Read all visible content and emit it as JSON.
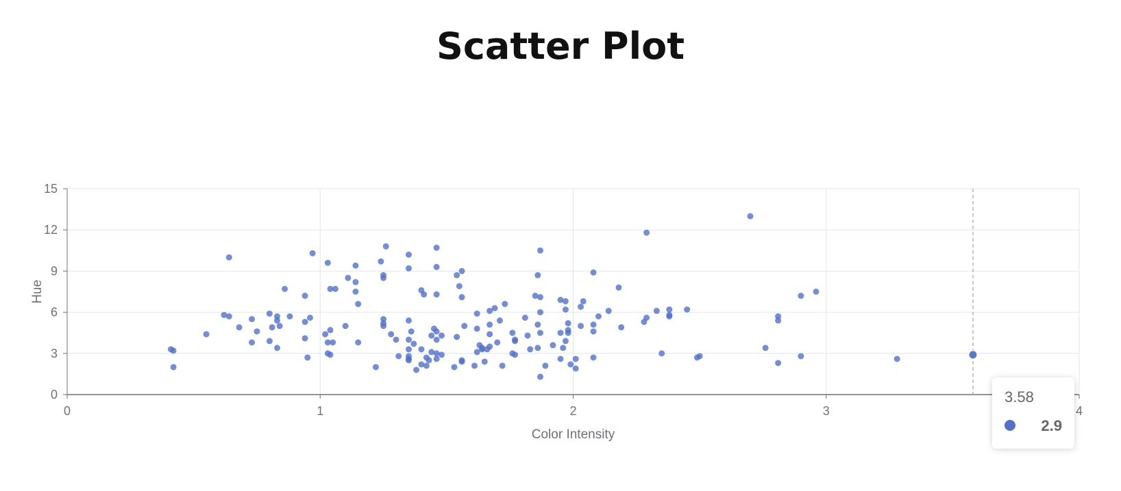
{
  "title": "Scatter Plot",
  "chart_data": {
    "type": "scatter",
    "xlabel": "Color Intensity",
    "ylabel": "Hue",
    "xlim": [
      0,
      4
    ],
    "ylim": [
      0,
      15
    ],
    "x_ticks": [
      "0",
      "1",
      "2",
      "3",
      "4"
    ],
    "y_ticks": [
      "0",
      "3",
      "6",
      "9",
      "12",
      "15"
    ],
    "grid": true,
    "color": "#5470c6",
    "series": [
      {
        "points": [
          [
            0.41,
            3.3
          ],
          [
            0.42,
            3.2
          ],
          [
            0.42,
            2.0
          ],
          [
            0.55,
            4.4
          ],
          [
            0.62,
            5.8
          ],
          [
            0.64,
            5.7
          ],
          [
            0.64,
            10.0
          ],
          [
            0.68,
            4.9
          ],
          [
            0.73,
            5.5
          ],
          [
            0.73,
            3.8
          ],
          [
            0.75,
            4.6
          ],
          [
            0.8,
            5.9
          ],
          [
            0.8,
            3.9
          ],
          [
            0.81,
            4.9
          ],
          [
            0.83,
            5.7
          ],
          [
            0.83,
            5.4
          ],
          [
            0.83,
            3.4
          ],
          [
            0.84,
            5.0
          ],
          [
            0.86,
            7.7
          ],
          [
            0.88,
            5.7
          ],
          [
            0.94,
            7.2
          ],
          [
            0.94,
            5.3
          ],
          [
            0.94,
            4.1
          ],
          [
            0.95,
            2.7
          ],
          [
            0.96,
            5.6
          ],
          [
            0.97,
            10.3
          ],
          [
            1.02,
            4.4
          ],
          [
            1.03,
            9.6
          ],
          [
            1.03,
            3.8
          ],
          [
            1.03,
            3.0
          ],
          [
            1.04,
            7.7
          ],
          [
            1.04,
            4.7
          ],
          [
            1.04,
            2.9
          ],
          [
            1.05,
            3.8
          ],
          [
            1.06,
            7.7
          ],
          [
            1.1,
            5.0
          ],
          [
            1.11,
            8.5
          ],
          [
            1.14,
            9.4
          ],
          [
            1.14,
            8.2
          ],
          [
            1.14,
            7.5
          ],
          [
            1.15,
            6.6
          ],
          [
            1.15,
            3.8
          ],
          [
            1.22,
            2.0
          ],
          [
            1.24,
            9.7
          ],
          [
            1.25,
            8.7
          ],
          [
            1.25,
            8.5
          ],
          [
            1.25,
            5.5
          ],
          [
            1.25,
            5.2
          ],
          [
            1.25,
            5.0
          ],
          [
            1.26,
            10.8
          ],
          [
            1.28,
            4.4
          ],
          [
            1.3,
            4.0
          ],
          [
            1.31,
            2.8
          ],
          [
            1.35,
            10.2
          ],
          [
            1.35,
            9.2
          ],
          [
            1.35,
            5.4
          ],
          [
            1.35,
            4.0
          ],
          [
            1.35,
            3.3
          ],
          [
            1.35,
            2.8
          ],
          [
            1.35,
            2.6
          ],
          [
            1.35,
            2.5
          ],
          [
            1.36,
            4.6
          ],
          [
            1.37,
            3.7
          ],
          [
            1.38,
            1.8
          ],
          [
            1.4,
            7.6
          ],
          [
            1.4,
            3.3
          ],
          [
            1.4,
            2.2
          ],
          [
            1.41,
            7.3
          ],
          [
            1.42,
            2.7
          ],
          [
            1.42,
            2.1
          ],
          [
            1.43,
            2.5
          ],
          [
            1.44,
            4.3
          ],
          [
            1.44,
            3.1
          ],
          [
            1.45,
            4.8
          ],
          [
            1.46,
            10.7
          ],
          [
            1.46,
            9.3
          ],
          [
            1.46,
            7.3
          ],
          [
            1.46,
            4.6
          ],
          [
            1.46,
            4.0
          ],
          [
            1.46,
            3.0
          ],
          [
            1.46,
            2.6
          ],
          [
            1.48,
            4.3
          ],
          [
            1.48,
            2.9
          ],
          [
            1.53,
            2.0
          ],
          [
            1.54,
            8.7
          ],
          [
            1.54,
            4.2
          ],
          [
            1.55,
            7.9
          ],
          [
            1.56,
            9.0
          ],
          [
            1.56,
            7.1
          ],
          [
            1.56,
            2.5
          ],
          [
            1.56,
            2.4
          ],
          [
            1.57,
            5.0
          ],
          [
            1.61,
            2.1
          ],
          [
            1.62,
            5.9
          ],
          [
            1.62,
            4.8
          ],
          [
            1.62,
            3.1
          ],
          [
            1.63,
            3.6
          ],
          [
            1.64,
            3.4
          ],
          [
            1.64,
            3.3
          ],
          [
            1.65,
            2.4
          ],
          [
            1.66,
            3.3
          ],
          [
            1.67,
            6.1
          ],
          [
            1.67,
            5.1
          ],
          [
            1.67,
            4.4
          ],
          [
            1.67,
            3.5
          ],
          [
            1.69,
            6.3
          ],
          [
            1.7,
            3.8
          ],
          [
            1.71,
            5.4
          ],
          [
            1.72,
            2.1
          ],
          [
            1.73,
            6.6
          ],
          [
            1.76,
            4.5
          ],
          [
            1.76,
            3.0
          ],
          [
            1.77,
            4.0
          ],
          [
            1.77,
            3.9
          ],
          [
            1.77,
            2.9
          ],
          [
            1.81,
            5.6
          ],
          [
            1.82,
            4.3
          ],
          [
            1.83,
            3.3
          ],
          [
            1.85,
            7.2
          ],
          [
            1.86,
            8.7
          ],
          [
            1.86,
            5.1
          ],
          [
            1.86,
            3.4
          ],
          [
            1.87,
            10.5
          ],
          [
            1.87,
            7.1
          ],
          [
            1.87,
            6.0
          ],
          [
            1.87,
            4.5
          ],
          [
            1.87,
            1.3
          ],
          [
            1.89,
            2.1
          ],
          [
            1.92,
            3.6
          ],
          [
            1.95,
            6.9
          ],
          [
            1.95,
            4.5
          ],
          [
            1.95,
            2.6
          ],
          [
            1.96,
            3.4
          ],
          [
            1.97,
            6.8
          ],
          [
            1.97,
            6.2
          ],
          [
            1.97,
            3.9
          ],
          [
            1.98,
            5.2
          ],
          [
            1.98,
            4.7
          ],
          [
            1.98,
            4.5
          ],
          [
            1.99,
            2.2
          ],
          [
            2.01,
            2.6
          ],
          [
            2.01,
            1.9
          ],
          [
            2.03,
            6.4
          ],
          [
            2.03,
            5.0
          ],
          [
            2.04,
            6.8
          ],
          [
            2.08,
            8.9
          ],
          [
            2.08,
            5.1
          ],
          [
            2.08,
            4.6
          ],
          [
            2.08,
            2.7
          ],
          [
            2.1,
            5.7
          ],
          [
            2.14,
            6.1
          ],
          [
            2.18,
            7.8
          ],
          [
            2.19,
            4.9
          ],
          [
            2.28,
            5.3
          ],
          [
            2.29,
            11.8
          ],
          [
            2.29,
            5.6
          ],
          [
            2.33,
            6.1
          ],
          [
            2.35,
            3.0
          ],
          [
            2.38,
            6.2
          ],
          [
            2.38,
            5.8
          ],
          [
            2.38,
            5.7
          ],
          [
            2.45,
            6.2
          ],
          [
            2.49,
            2.7
          ],
          [
            2.5,
            2.8
          ],
          [
            2.7,
            13.0
          ],
          [
            2.76,
            3.4
          ],
          [
            2.81,
            5.7
          ],
          [
            2.81,
            5.4
          ],
          [
            2.81,
            2.3
          ],
          [
            2.9,
            7.2
          ],
          [
            2.9,
            2.8
          ],
          [
            2.96,
            7.5
          ],
          [
            3.28,
            2.6
          ],
          [
            3.58,
            2.9
          ]
        ]
      }
    ],
    "highlight": {
      "x": 3.58,
      "y": 2.9
    }
  },
  "tooltip": {
    "x_value": "3.58",
    "y_value": "2.9"
  }
}
